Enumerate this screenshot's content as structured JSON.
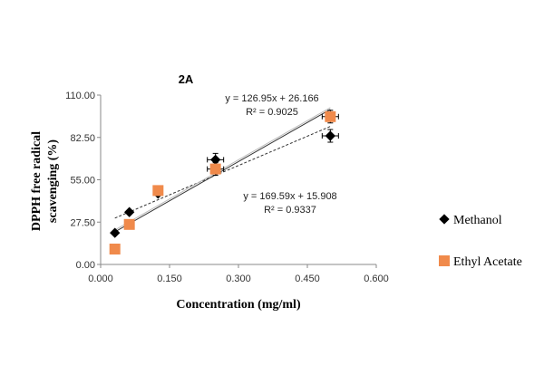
{
  "chart_data": {
    "type": "scatter",
    "title": "2A",
    "xlabel": "Concentration  (mg/ml)",
    "ylabel": [
      "DPPH free radical",
      "scavenging (%)"
    ],
    "xlim": [
      0,
      0.6
    ],
    "ylim": [
      0,
      110
    ],
    "xticks": [
      "0.000",
      "0.150",
      "0.300",
      "0.450",
      "0.600"
    ],
    "yticks": [
      "0.00",
      "27.50",
      "55.00",
      "82.50",
      "110.00"
    ],
    "legend_position": "right",
    "series": [
      {
        "name": "Methanol",
        "marker": "diamond",
        "color": "#000000",
        "x": [
          0.031,
          0.0625,
          0.125,
          0.25,
          0.5
        ],
        "y": [
          20.5,
          34,
          46,
          68,
          83.5
        ],
        "trendline": {
          "slope": 126.95,
          "intercept": 26.166,
          "style": "dashed",
          "equation": "y = 126.95x + 26.166",
          "r2": "R² = 0.9025"
        }
      },
      {
        "name": "Ethyl Acetate",
        "marker": "square",
        "color": "#F08A4B",
        "x": [
          0.031,
          0.0625,
          0.125,
          0.25,
          0.5
        ],
        "y": [
          10,
          26,
          48,
          62,
          96
        ],
        "trendline": {
          "slope": 169.59,
          "intercept": 15.908,
          "style": "solid",
          "equation": "y = 169.59x + 15.908",
          "r2": "R² = 0.9337"
        }
      }
    ]
  }
}
